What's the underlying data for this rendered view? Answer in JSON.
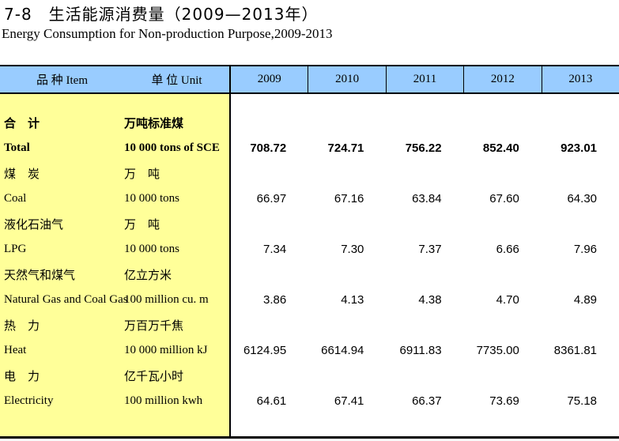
{
  "title": {
    "zh": "7-8　生活能源消费量（2009—2013年）",
    "en": "Energy Consumption for Non-production Purpose,2009-2013"
  },
  "colors": {
    "header_bg": "#99CCFF",
    "item_column_bg": "#FFFF99",
    "border": "#000000"
  },
  "table": {
    "header": {
      "item": "品 种 Item",
      "unit": "单 位 Unit",
      "years": [
        "2009",
        "2010",
        "2011",
        "2012",
        "2013"
      ]
    },
    "rows": [
      {
        "zh": "合　计",
        "zh_unit": "万吨标准煤",
        "en": "Total",
        "en_unit": "10 000 tons of SCE",
        "values": [
          "708.72",
          "724.71",
          "756.22",
          "852.40",
          "923.01"
        ]
      },
      {
        "zh": "煤　炭",
        "zh_unit": "万　吨",
        "en": "Coal",
        "en_unit": "10 000 tons",
        "values": [
          "66.97",
          "67.16",
          "63.84",
          "67.60",
          "64.30"
        ]
      },
      {
        "zh": "液化石油气",
        "zh_unit": "万　吨",
        "en": "LPG",
        "en_unit": "10 000 tons",
        "values": [
          "7.34",
          "7.30",
          "7.37",
          "6.66",
          "7.96"
        ]
      },
      {
        "zh": "天然气和煤气",
        "zh_unit": "亿立方米",
        "en": "Natural Gas and Coal Gas",
        "en_unit": "100 million cu. m",
        "values": [
          "3.86",
          "4.13",
          "4.38",
          "4.70",
          "4.89"
        ]
      },
      {
        "zh": "热　力",
        "zh_unit": "万百万千焦",
        "en": "Heat",
        "en_unit": "10 000 million kJ",
        "values": [
          "6124.95",
          "6614.94",
          "6911.83",
          "7735.00",
          "8361.81"
        ]
      },
      {
        "zh": "电　力",
        "zh_unit": "亿千瓦小时",
        "en": "Electricity",
        "en_unit": "100 million kwh",
        "values": [
          "64.61",
          "67.41",
          "66.37",
          "73.69",
          "75.18"
        ]
      }
    ]
  }
}
